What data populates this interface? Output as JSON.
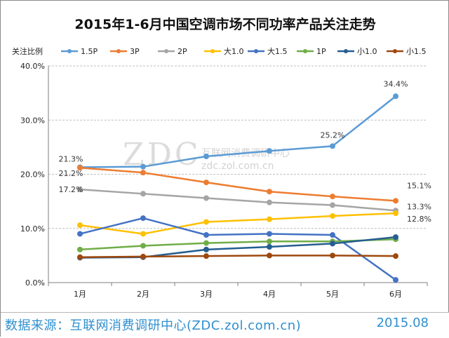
{
  "chart_data": {
    "type": "line",
    "title": "2015年1-6月中国空调市场不同功率产品关注走势",
    "ylabel": "关注比例",
    "categories": [
      "1月",
      "2月",
      "3月",
      "4月",
      "5月",
      "6月"
    ],
    "ylim": [
      0,
      40
    ],
    "yticks": [
      "0.0%",
      "10.0%",
      "20.0%",
      "30.0%",
      "40.0%"
    ],
    "ytick_values": [
      0,
      10,
      20,
      30,
      40
    ],
    "series": [
      {
        "name": "1.5P",
        "color": "#5b9bd5",
        "values": [
          21.3,
          21.4,
          23.3,
          24.3,
          25.2,
          34.4
        ]
      },
      {
        "name": "3P",
        "color": "#ed7d31",
        "values": [
          21.2,
          20.3,
          18.5,
          16.8,
          15.9,
          15.1
        ]
      },
      {
        "name": "2P",
        "color": "#a5a5a5",
        "values": [
          17.2,
          16.4,
          15.6,
          14.8,
          14.3,
          13.3
        ]
      },
      {
        "name": "大1.0",
        "color": "#ffc000",
        "values": [
          10.6,
          9.0,
          11.2,
          11.7,
          12.3,
          12.8
        ]
      },
      {
        "name": "大1.5",
        "color": "#4472c4",
        "values": [
          9.0,
          11.9,
          8.8,
          9.0,
          8.8,
          0.5
        ]
      },
      {
        "name": "1P",
        "color": "#70ad47",
        "values": [
          6.1,
          6.8,
          7.3,
          7.6,
          7.6,
          8.0
        ]
      },
      {
        "name": "小1.0",
        "color": "#255e91",
        "values": [
          4.6,
          4.7,
          6.1,
          6.6,
          7.2,
          8.4
        ]
      },
      {
        "name": "小1.5",
        "color": "#9e480e",
        "values": [
          4.7,
          4.8,
          4.9,
          5.0,
          5.0,
          4.9
        ]
      }
    ],
    "data_labels": [
      {
        "text": "21.3%",
        "series": "1.5P",
        "index": 0
      },
      {
        "text": "21.2%",
        "series": "3P",
        "index": 0
      },
      {
        "text": "17.2%",
        "series": "2P",
        "index": 0
      },
      {
        "text": "25.2%",
        "series": "1.5P",
        "index": 4
      },
      {
        "text": "34.4%",
        "series": "1.5P",
        "index": 5
      },
      {
        "text": "15.1%",
        "series": "3P",
        "index": 5
      },
      {
        "text": "13.3%",
        "series": "2P",
        "index": 5
      },
      {
        "text": "12.8%",
        "series": "大1.0",
        "index": 5
      }
    ],
    "watermark": {
      "main": "ZDC",
      "cn": "互联网消费调研中心",
      "url": "zdc.zol.com.cn"
    },
    "grid": true,
    "legend": "top"
  },
  "footer": {
    "source": "数据来源：互联网消费调研中心(ZDC.zol.com.cn)",
    "date": "2015.08"
  }
}
